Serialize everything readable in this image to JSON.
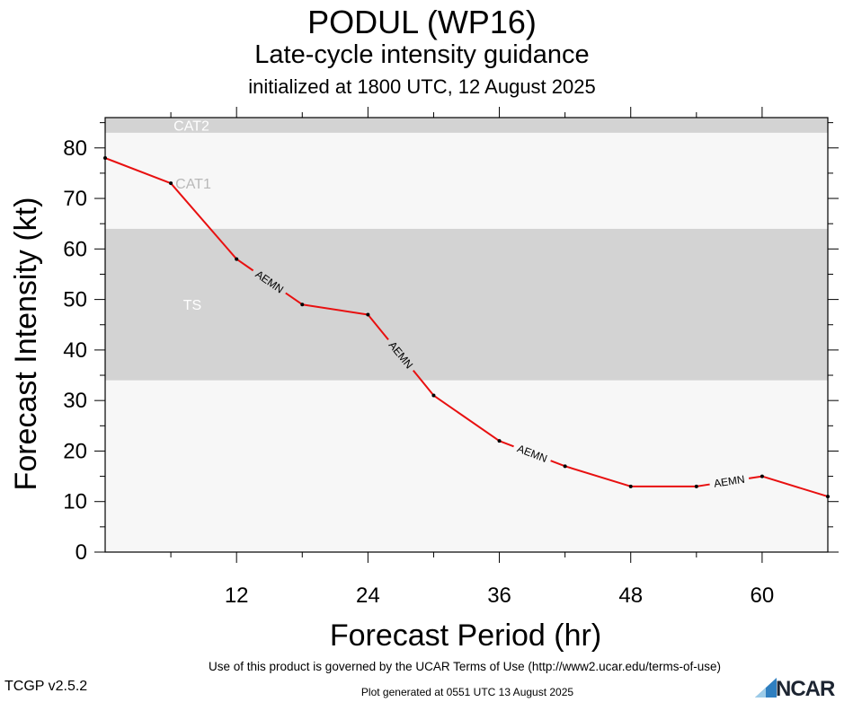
{
  "header": {
    "title": "PODUL (WP16)",
    "subtitle": "Late-cycle intensity guidance",
    "init": "initialized at 1800 UTC, 12 August 2025"
  },
  "footer": {
    "terms": "Use of this product is governed by the UCAR Terms of Use (http://www2.ucar.edu/terms-of-use)",
    "generated": "Plot generated at 0551 UTC   13 August 2025",
    "version": "TCGP v2.5.2",
    "logo_text": "NCAR"
  },
  "colors": {
    "line": "#e81010",
    "band_dark": "#d3d3d3",
    "band_light": "#f7f7f7"
  },
  "chart_data": {
    "type": "line",
    "xlabel": "Forecast Period (hr)",
    "ylabel": "Forecast Intensity (kt)",
    "xlim": [
      0,
      66
    ],
    "ylim": [
      0,
      86
    ],
    "xticks": [
      12,
      24,
      36,
      48,
      60
    ],
    "yticks": [
      0,
      10,
      20,
      30,
      40,
      50,
      60,
      70,
      80
    ],
    "grid": false,
    "bands": [
      {
        "label": "TS",
        "from": 34,
        "to": 64,
        "shade": "dark"
      },
      {
        "label": "CAT1",
        "from": 64,
        "to": 83,
        "shade": "light"
      },
      {
        "label": "CAT2",
        "from": 83,
        "to": 86,
        "shade": "dark"
      }
    ],
    "series": [
      {
        "name": "AEMN",
        "x": [
          0,
          6,
          12,
          18,
          24,
          30,
          36,
          42,
          48,
          54,
          60,
          66
        ],
        "y": [
          78,
          73,
          58,
          49,
          47,
          31,
          22,
          17,
          13,
          13,
          15,
          11
        ],
        "label_segments": [
          2,
          4,
          6,
          9
        ]
      }
    ]
  }
}
